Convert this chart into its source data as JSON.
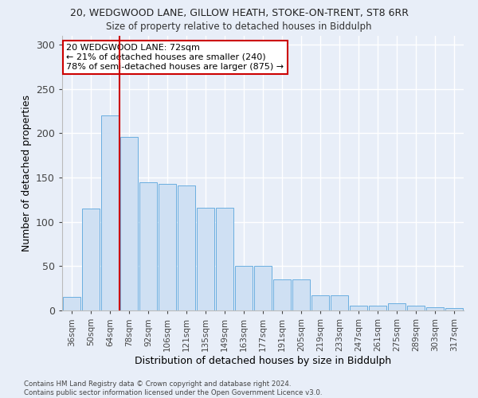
{
  "title1": "20, WEDGWOOD LANE, GILLOW HEATH, STOKE-ON-TRENT, ST8 6RR",
  "title2": "Size of property relative to detached houses in Biddulph",
  "xlabel": "Distribution of detached houses by size in Biddulph",
  "ylabel": "Number of detached properties",
  "categories": [
    "36sqm",
    "50sqm",
    "64sqm",
    "78sqm",
    "92sqm",
    "106sqm",
    "121sqm",
    "135sqm",
    "149sqm",
    "163sqm",
    "177sqm",
    "191sqm",
    "205sqm",
    "219sqm",
    "233sqm",
    "247sqm",
    "261sqm",
    "275sqm",
    "289sqm",
    "303sqm",
    "317sqm"
  ],
  "values": [
    15,
    115,
    220,
    196,
    145,
    143,
    141,
    116,
    116,
    50,
    50,
    35,
    35,
    17,
    17,
    5,
    5,
    8,
    5,
    4,
    3
  ],
  "bar_color": "#cfe0f3",
  "bar_edge_color": "#6aaee0",
  "vline_x": 2.5,
  "vline_color": "#cc0000",
  "annotation_text": "20 WEDGWOOD LANE: 72sqm\n← 21% of detached houses are smaller (240)\n78% of semi-detached houses are larger (875) →",
  "annotation_box_color": "#ffffff",
  "annotation_box_edge": "#cc0000",
  "background_color": "#e8eef8",
  "grid_color": "#ffffff",
  "footnote": "Contains HM Land Registry data © Crown copyright and database right 2024.\nContains public sector information licensed under the Open Government Licence v3.0.",
  "ylim": [
    0,
    310
  ],
  "yticks": [
    0,
    50,
    100,
    150,
    200,
    250,
    300
  ]
}
